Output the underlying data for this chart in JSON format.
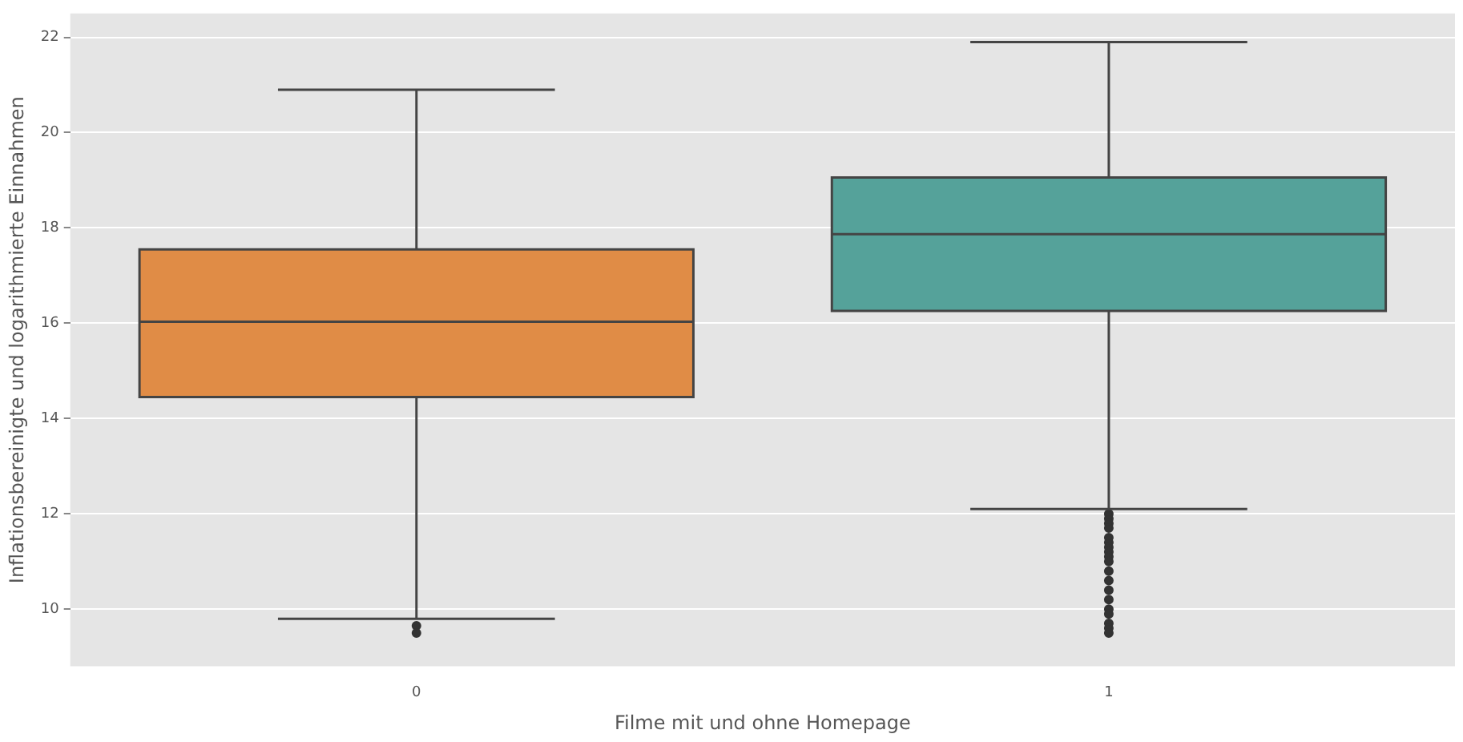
{
  "chart_data": {
    "type": "box",
    "xlabel": "Filme mit und ohne Homepage",
    "ylabel": "Inflationsbereinigte und logarithmierte Einnahmen",
    "categories": [
      "0",
      "1"
    ],
    "colors": [
      "#e08c46",
      "#55a29a"
    ],
    "boxes": [
      {
        "low": 9.8,
        "q1": 14.45,
        "median": 16.03,
        "q3": 17.55,
        "high": 20.9,
        "outliers": [
          9.65,
          9.5
        ]
      },
      {
        "low": 12.1,
        "q1": 16.26,
        "median": 17.87,
        "q3": 19.06,
        "high": 21.9,
        "outliers": [
          12.0,
          11.9,
          11.8,
          11.7,
          11.5,
          11.4,
          11.3,
          11.2,
          11.1,
          11.0,
          10.8,
          10.6,
          10.4,
          10.2,
          10.0,
          9.9,
          9.7,
          9.6,
          9.5
        ]
      }
    ],
    "ylim": [
      8.8,
      22.5
    ],
    "yticks": [
      10,
      12,
      14,
      16,
      18,
      20,
      22
    ],
    "grid": "y"
  }
}
